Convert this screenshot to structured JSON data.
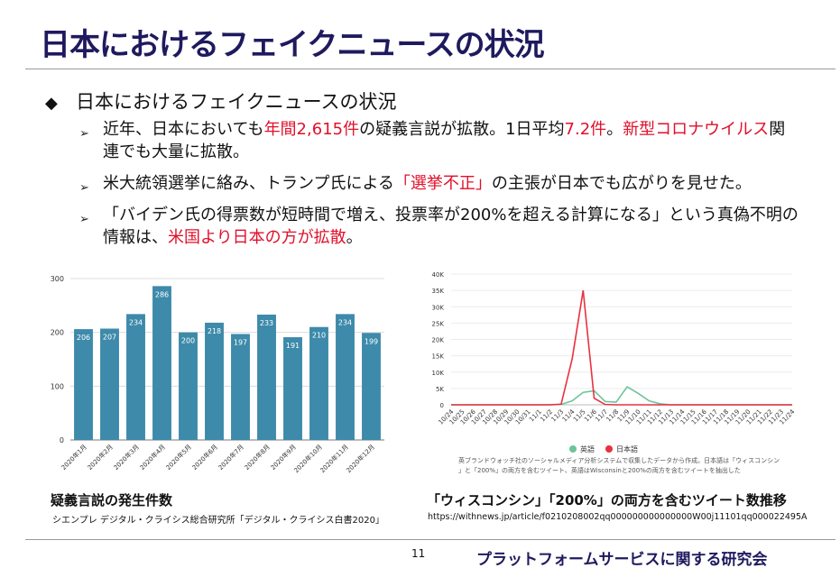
{
  "header": {
    "title": "日本におけるフェイクニュースの状況"
  },
  "main": {
    "bullet": "日本におけるフェイクニュースの状況",
    "sub_items": [
      [
        {
          "text": "近年、日本においても",
          "red": false
        },
        {
          "text": "年間2,615件",
          "red": true
        },
        {
          "text": "の疑義言説が拡散。1日平均",
          "red": false
        },
        {
          "text": "7.2件",
          "red": true
        },
        {
          "text": "。",
          "red": false
        },
        {
          "text": "新型コロナウイルス",
          "red": true
        },
        {
          "text": "関連でも大量に拡散。",
          "red": false
        }
      ],
      [
        {
          "text": "米大統領選挙に絡み、トランプ氏による",
          "red": false
        },
        {
          "text": "「選挙不正」",
          "red": true
        },
        {
          "text": "の主張が日本でも広がりを見せた。",
          "red": false
        }
      ],
      [
        {
          "text": "「バイデン氏の得票数が短時間で増え、投票率が200%を超える計算になる」という真偽不明の情報は、",
          "red": false
        },
        {
          "text": "米国より日本の方が拡散",
          "red": true
        },
        {
          "text": "。",
          "red": false
        }
      ]
    ]
  },
  "chart_data": [
    {
      "type": "bar",
      "categories": [
        "2020年1月",
        "2020年2月",
        "2020年3月",
        "2020年4月",
        "2020年5月",
        "2020年6月",
        "2020年7月",
        "2020年8月",
        "2020年9月",
        "2020年10月",
        "2020年11月",
        "2020年12月"
      ],
      "values": [
        206,
        207,
        234,
        286,
        200,
        218,
        197,
        233,
        191,
        210,
        234,
        199
      ],
      "ylim": [
        0,
        300
      ],
      "yticks": [
        0,
        100,
        200,
        300
      ],
      "bar_color": "#3d8aaa",
      "caption": "疑義言説の発生件数",
      "source": "シエンプレ デジタル・クライシス総合研究所「デジタル・クライシス白書2020」"
    },
    {
      "type": "line",
      "x": [
        "10/24",
        "10/25",
        "10/26",
        "10/27",
        "10/28",
        "10/29",
        "10/30",
        "10/31",
        "11/1",
        "11/2",
        "11/3",
        "11/4",
        "11/5",
        "11/6",
        "11/7",
        "11/8",
        "11/9",
        "11/10",
        "11/11",
        "11/12",
        "11/13",
        "11/14",
        "11/15",
        "11/16",
        "11/17",
        "11/18",
        "11/19",
        "11/20",
        "11/21",
        "11/22",
        "11/23",
        "11/24"
      ],
      "yticks": [
        "0",
        "5K",
        "10K",
        "15K",
        "20K",
        "25K",
        "30K",
        "35K",
        "40K"
      ],
      "ylim": [
        0,
        40000
      ],
      "series": [
        {
          "name": "英語",
          "color": "#6cc49a",
          "values": [
            0,
            0,
            0,
            0,
            0,
            0,
            0,
            0,
            0,
            0,
            100,
            1200,
            3800,
            4300,
            1000,
            800,
            5500,
            3500,
            1200,
            300,
            0,
            0,
            0,
            0,
            0,
            0,
            0,
            0,
            0,
            0,
            0,
            0
          ]
        },
        {
          "name": "日本語",
          "color": "#e8313f",
          "values": [
            0,
            0,
            0,
            0,
            0,
            0,
            0,
            0,
            0,
            0,
            200,
            14000,
            35000,
            2000,
            100,
            0,
            0,
            0,
            0,
            0,
            0,
            0,
            0,
            0,
            0,
            0,
            0,
            0,
            0,
            0,
            0,
            0
          ]
        }
      ],
      "note": [
        "英ブランドウォッチ社のソーシャルメディア分析システムで収集したデータから作成。日本語は「ウィスコンシン",
        "」と「200%」の両方を含むツイート、英語はWisconsinと200%の両方を含むツイートを抽出した"
      ],
      "caption": "「ウィスコンシン」「200%」の両方を含むツイート数推移",
      "source": "https://withnews.jp/article/f0210208002qq000000000000000W00j11101qq000022495A"
    }
  ],
  "footer": {
    "page": "11",
    "org": "プラットフォームサービスに関する研究会"
  }
}
